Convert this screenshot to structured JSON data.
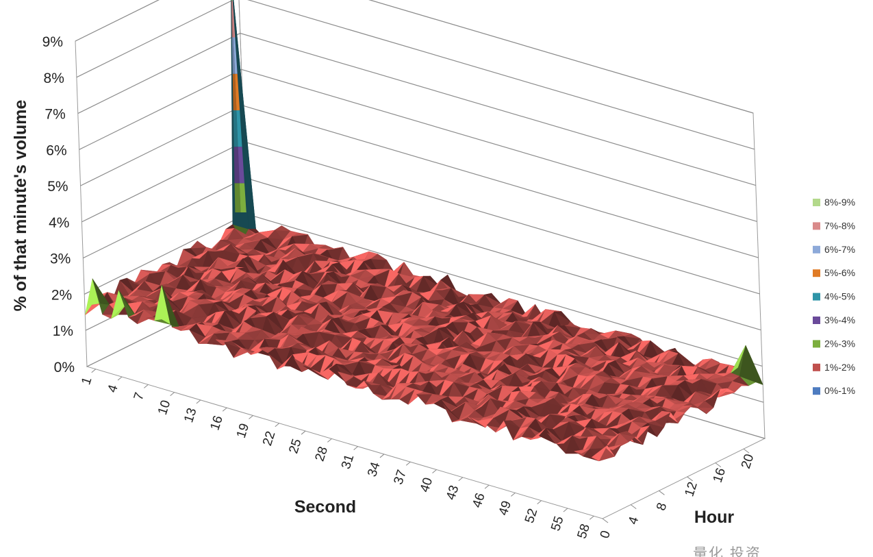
{
  "chart_data": {
    "type": "surface",
    "ylabel": "% of that minute's volume",
    "xlabel": "Second",
    "zlabel": "Hour",
    "y_ticks": [
      "0%",
      "1%",
      "2%",
      "3%",
      "4%",
      "5%",
      "6%",
      "7%",
      "8%",
      "9%"
    ],
    "ylim": [
      0,
      9
    ],
    "second_ticks": [
      "1",
      "4",
      "7",
      "10",
      "13",
      "16",
      "19",
      "22",
      "25",
      "28",
      "31",
      "34",
      "37",
      "40",
      "43",
      "46",
      "49",
      "52",
      "55",
      "58"
    ],
    "hour_ticks": [
      "0",
      "4",
      "8",
      "12",
      "16",
      "20"
    ],
    "grid": true,
    "legend_position": "right",
    "bands": [
      {
        "label": "8%-9%",
        "color": "#b3d98b"
      },
      {
        "label": "7%-8%",
        "color": "#d98a8a"
      },
      {
        "label": "6%-7%",
        "color": "#8da9d9"
      },
      {
        "label": "5%-6%",
        "color": "#e07b25"
      },
      {
        "label": "4%-5%",
        "color": "#2f95a8"
      },
      {
        "label": "3%-4%",
        "color": "#6a4a9a"
      },
      {
        "label": "2%-3%",
        "color": "#7cae3e"
      },
      {
        "label": "1%-2%",
        "color": "#c0504d"
      },
      {
        "label": "0%-1%",
        "color": "#4e7cc0"
      }
    ],
    "typical_level_pct": 1.7,
    "peaks": [
      {
        "second": 0,
        "hour": 22,
        "value": 8.8
      },
      {
        "second": 1,
        "hour": 0,
        "value": 2.5
      },
      {
        "second": 4,
        "hour": 0,
        "value": 2.4
      },
      {
        "second": 9,
        "hour": 0,
        "value": 2.9
      },
      {
        "second": 21,
        "hour": 3,
        "value": 2.1
      },
      {
        "second": 30,
        "hour": 8,
        "value": 2.0
      },
      {
        "second": 58,
        "hour": 22,
        "value": 2.6
      }
    ]
  },
  "watermark": "量化 投资"
}
